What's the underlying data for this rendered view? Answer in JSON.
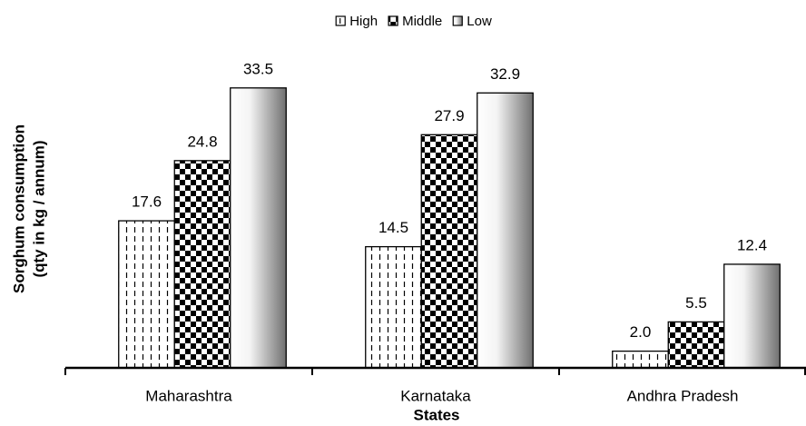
{
  "chart_data": {
    "type": "bar",
    "y_label_lines": [
      "Sorghum consumption",
      "(qty in kg / annum)"
    ],
    "x_label": "States",
    "categories": [
      "Maharashtra",
      "Karnataka",
      "Andhra Pradesh"
    ],
    "series": [
      {
        "name": "High",
        "color": "#000000",
        "pattern": "dashed-vertical",
        "values": [
          17.6,
          14.5,
          2.0
        ],
        "value_labels": [
          "17.6",
          "14.5",
          "2.0"
        ]
      },
      {
        "name": "Middle",
        "color": "#000000",
        "pattern": "checkerboard",
        "values": [
          24.8,
          27.9,
          5.5
        ],
        "value_labels": [
          "24.8",
          "27.9",
          "5.5"
        ]
      },
      {
        "name": "Low",
        "color": "#707070",
        "pattern": "gradient",
        "values": [
          33.5,
          32.9,
          12.4
        ],
        "value_labels": [
          "33.5",
          "32.9",
          "12.4"
        ]
      }
    ],
    "ylim": [
      0,
      35
    ],
    "legend": "top"
  }
}
